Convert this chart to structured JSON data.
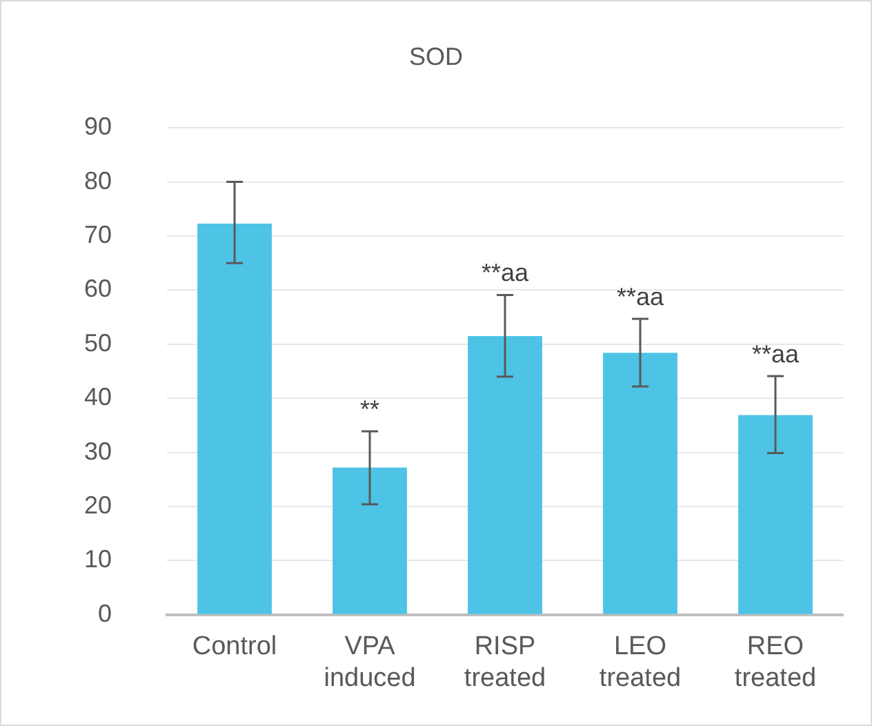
{
  "chart_data": {
    "type": "bar",
    "title": "SOD",
    "categories": [
      "Control",
      "VPA induced",
      "RISP treated",
      "LEO treated",
      "REO treated"
    ],
    "values": [
      72.3,
      27.2,
      51.5,
      48.4,
      36.9
    ],
    "errors": [
      [
        65,
        80
      ],
      [
        20.4,
        33.9
      ],
      [
        44,
        59.1
      ],
      [
        42.2,
        54.7
      ],
      [
        29.9,
        44.1
      ]
    ],
    "color": "#4dc3e6",
    "ylim": [
      0,
      90
    ],
    "yticks": [
      0,
      10,
      20,
      30,
      40,
      50,
      60,
      70,
      80,
      90
    ],
    "grid": "y",
    "legend": false,
    "annotations": [
      "**",
      "**aa",
      "**aa",
      "**aa"
    ]
  }
}
